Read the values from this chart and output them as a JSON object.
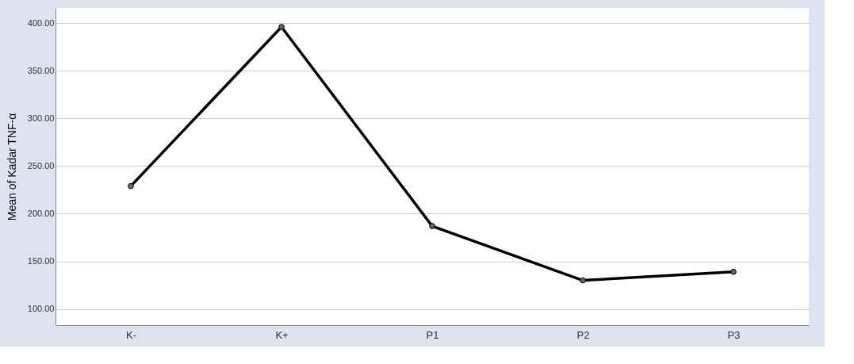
{
  "chart_data": {
    "type": "line",
    "ylabel": "Mean of Kadar TNF-α",
    "categories": [
      "K-",
      "K+",
      "P1",
      "P2",
      "P3"
    ],
    "series": [
      {
        "color": "#000000",
        "values": [
          229,
          396,
          187,
          130,
          139
        ]
      }
    ],
    "ylim": [
      83,
      416
    ],
    "yticks": [
      {
        "value": 100,
        "label": "100.00"
      },
      {
        "value": 150,
        "label": "150.00"
      },
      {
        "value": 200,
        "label": "200.00"
      },
      {
        "value": 250,
        "label": "250.00"
      },
      {
        "value": 300,
        "label": "300.00"
      },
      {
        "value": 350,
        "label": "350.00"
      },
      {
        "value": 400,
        "label": "400.00"
      }
    ],
    "grid": "y",
    "marker": "circle",
    "line_style": "solid"
  }
}
